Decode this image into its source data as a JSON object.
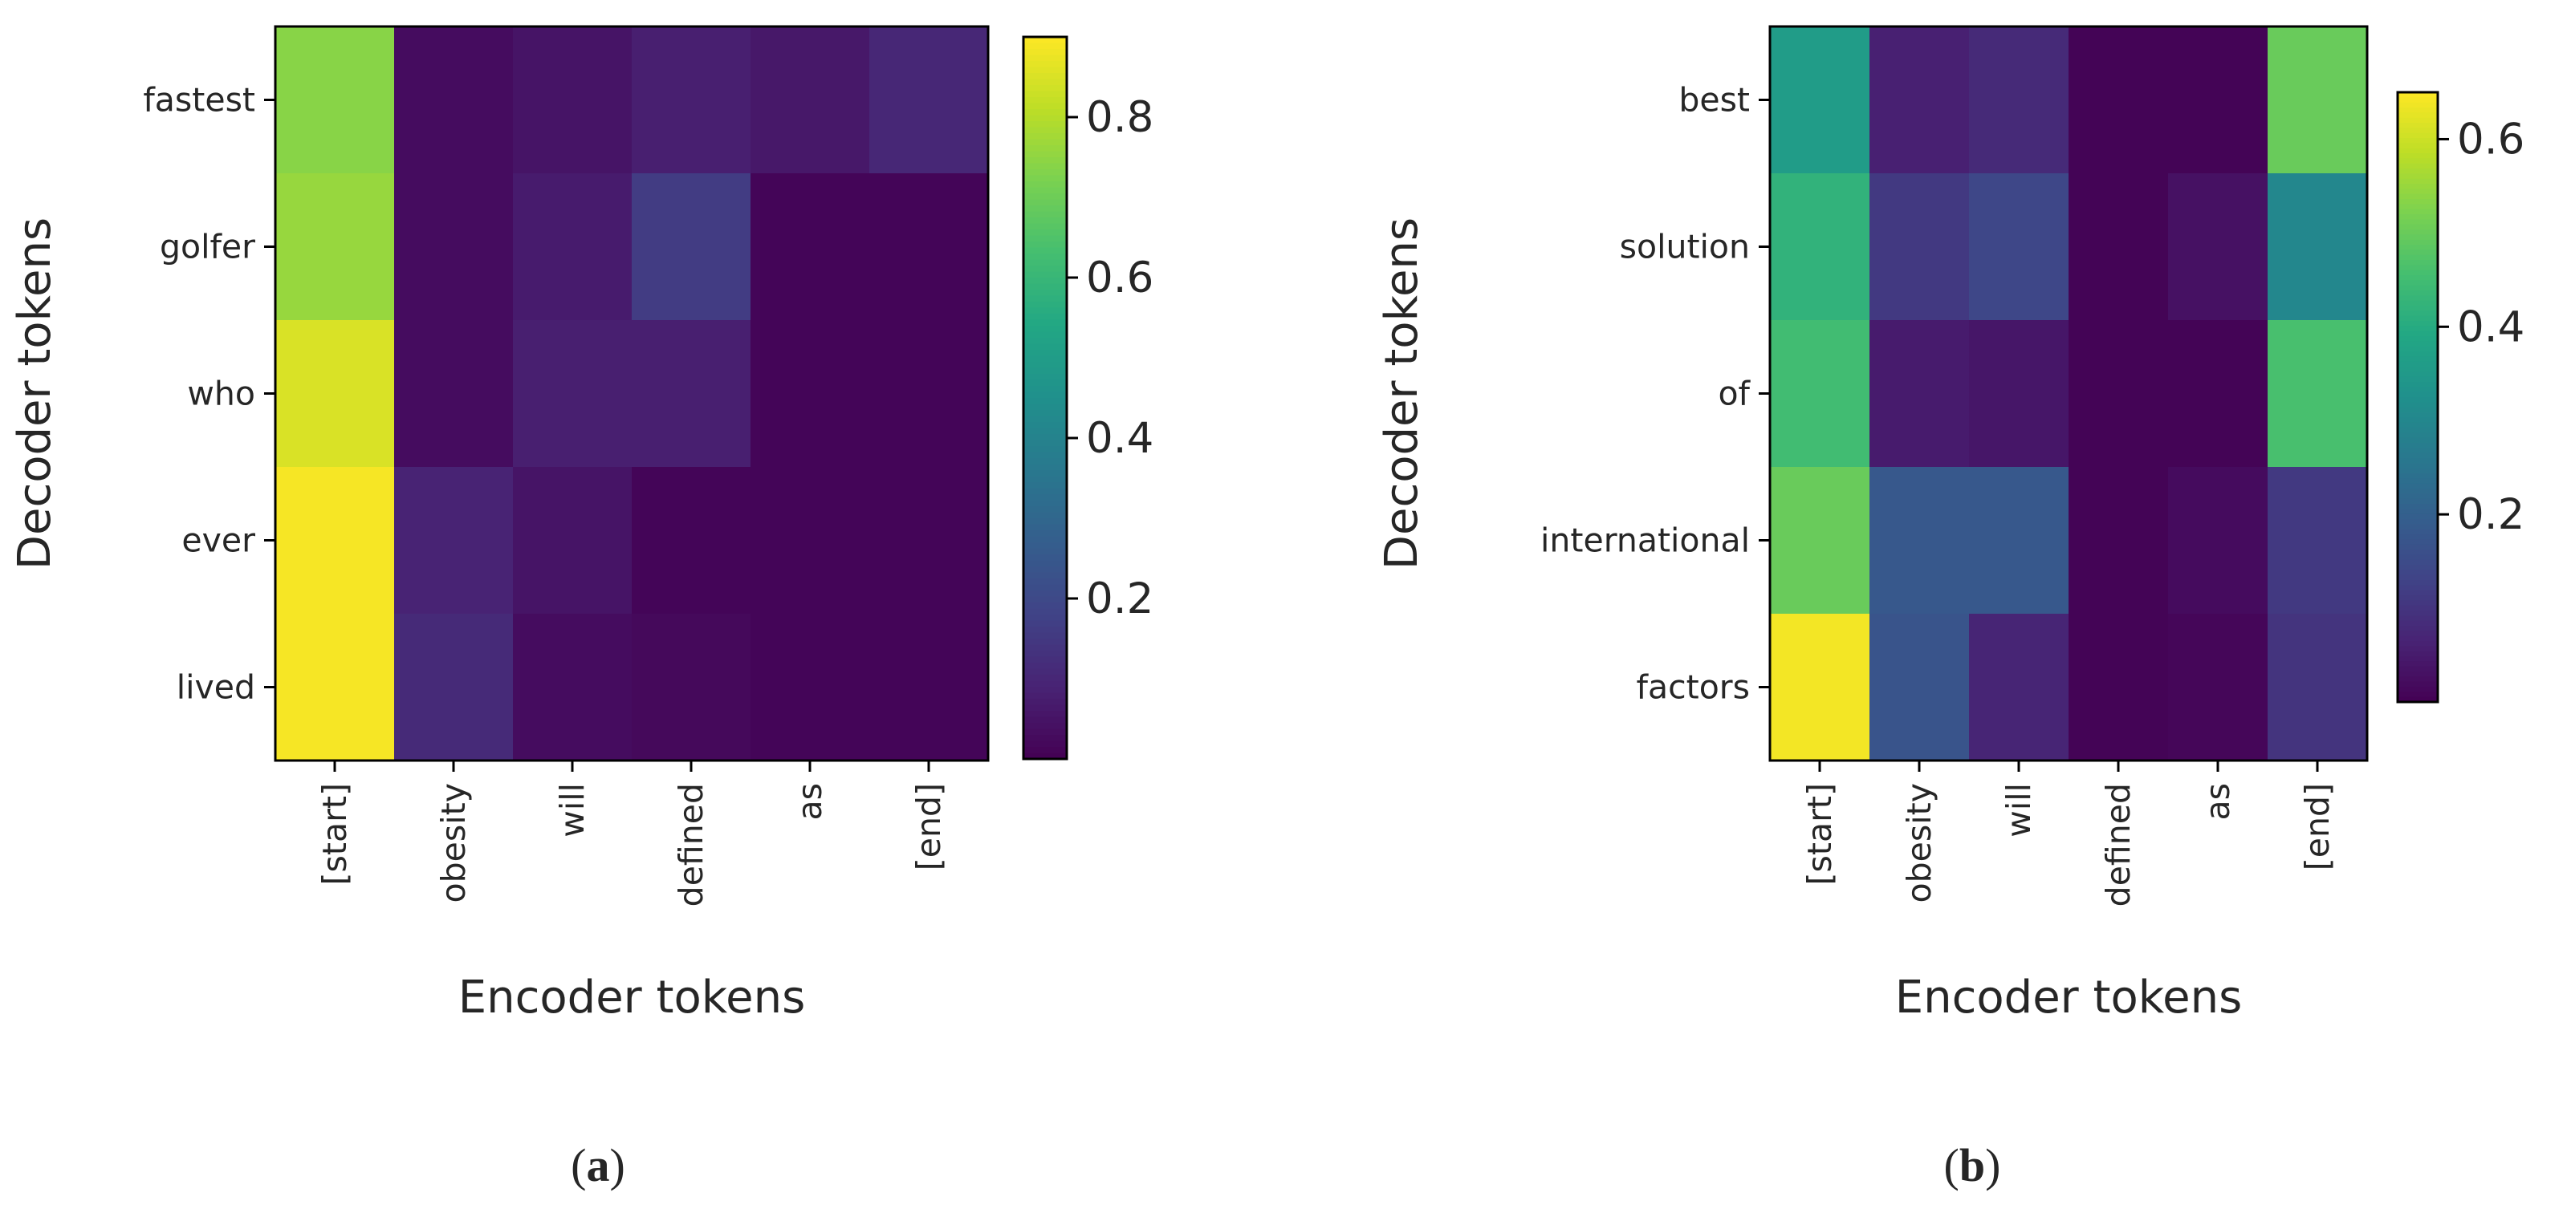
{
  "chart_data": [
    {
      "type": "heatmap",
      "panel_label": "a",
      "xlabel": "Encoder tokens",
      "ylabel": "Decoder tokens",
      "x_tokens": [
        "[start]",
        "obesity",
        "will",
        "defined",
        "as",
        "[end]"
      ],
      "y_tokens": [
        "fastest",
        "golfer",
        "who",
        "ever",
        "lived"
      ],
      "values": [
        [
          0.74,
          0.03,
          0.05,
          0.08,
          0.06,
          0.1
        ],
        [
          0.76,
          0.03,
          0.07,
          0.16,
          0.01,
          0.01
        ],
        [
          0.85,
          0.03,
          0.08,
          0.08,
          0.01,
          0.01
        ],
        [
          0.89,
          0.09,
          0.05,
          0.01,
          0.01,
          0.01
        ],
        [
          0.89,
          0.11,
          0.03,
          0.02,
          0.01,
          0.01
        ]
      ],
      "colorbar": {
        "min": 0.0,
        "max": 0.9,
        "ticks": [
          0.2,
          0.4,
          0.6,
          0.8
        ],
        "tick_labels": [
          "0.2",
          "0.4",
          "0.6",
          "0.8"
        ]
      },
      "colormap": "viridis"
    },
    {
      "type": "heatmap",
      "panel_label": "b",
      "xlabel": "Encoder tokens",
      "ylabel": "Decoder tokens",
      "x_tokens": [
        "[start]",
        "obesity",
        "will",
        "defined",
        "as",
        "[end]"
      ],
      "y_tokens": [
        "best",
        "solution",
        "of",
        "international",
        "factors"
      ],
      "values": [
        [
          0.36,
          0.06,
          0.08,
          0.005,
          0.005,
          0.5
        ],
        [
          0.42,
          0.11,
          0.14,
          0.005,
          0.03,
          0.3
        ],
        [
          0.45,
          0.05,
          0.04,
          0.005,
          0.005,
          0.46
        ],
        [
          0.5,
          0.18,
          0.18,
          0.005,
          0.02,
          0.11
        ],
        [
          0.64,
          0.17,
          0.07,
          0.005,
          0.01,
          0.1
        ]
      ],
      "colorbar": {
        "min": 0.0,
        "max": 0.65,
        "ticks": [
          0.2,
          0.4,
          0.6
        ],
        "tick_labels": [
          "0.2",
          "0.4",
          "0.6"
        ]
      },
      "colormap": "viridis"
    }
  ],
  "captions": {
    "a": "a",
    "b": "b"
  }
}
